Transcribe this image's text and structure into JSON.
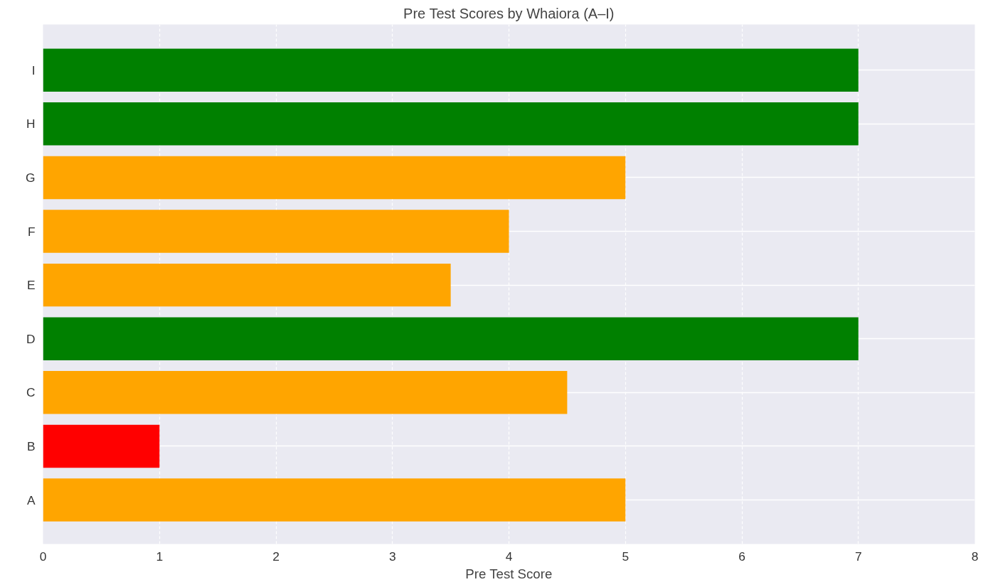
{
  "chart_data": {
    "type": "bar",
    "orientation": "horizontal",
    "title": "Pre Test Scores by Whaiora (A–I)",
    "xlabel": "Pre Test Score",
    "categories": [
      "I",
      "H",
      "G",
      "F",
      "E",
      "D",
      "C",
      "B",
      "A"
    ],
    "values": [
      7,
      7,
      5,
      4,
      3.5,
      7,
      4.5,
      1,
      5
    ],
    "colors": [
      "#008000",
      "#008000",
      "#ffa500",
      "#ffa500",
      "#ffa500",
      "#008000",
      "#ffa500",
      "#ff0000",
      "#ffa500"
    ],
    "xlim": [
      0,
      8
    ],
    "xticks": [
      0,
      1,
      2,
      3,
      4,
      5,
      6,
      7,
      8
    ],
    "grid": true
  }
}
